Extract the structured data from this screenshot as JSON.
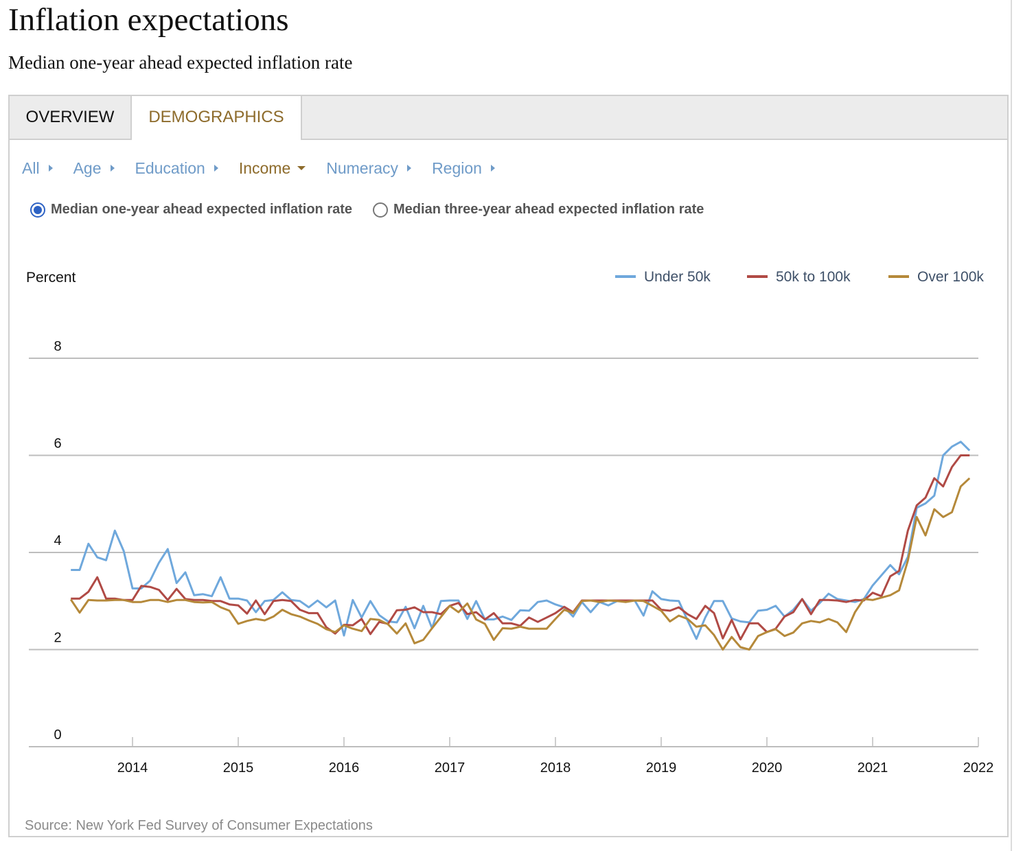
{
  "page": {
    "title": "Inflation expectations",
    "subtitle": "Median one-year ahead expected inflation rate"
  },
  "tabs": [
    {
      "label": "OVERVIEW",
      "active": false
    },
    {
      "label": "DEMOGRAPHICS",
      "active": true
    }
  ],
  "filters": [
    {
      "label": "All",
      "icon": "caret-right-icon",
      "active": false
    },
    {
      "label": "Age",
      "icon": "caret-right-icon",
      "active": false
    },
    {
      "label": "Education",
      "icon": "caret-right-icon",
      "active": false
    },
    {
      "label": "Income",
      "icon": "caret-down-icon",
      "active": true
    },
    {
      "label": "Numeracy",
      "icon": "caret-right-icon",
      "active": false
    },
    {
      "label": "Region",
      "icon": "caret-right-icon",
      "active": false
    }
  ],
  "radios": [
    {
      "label": "Median one-year ahead expected inflation rate",
      "checked": true
    },
    {
      "label": "Median three-year ahead expected inflation rate",
      "checked": false
    }
  ],
  "source": "Source: New York Fed Survey of Consumer Expectations",
  "colors": {
    "accent_gold": "#8d6b2b",
    "link_blue": "#6f9bc8",
    "radio_blue": "#2d62c4"
  },
  "chart_data": {
    "type": "line",
    "title": "",
    "ylabel": "Percent",
    "xlabel": "",
    "ylim": [
      0,
      8
    ],
    "yticks": [
      0,
      2,
      4,
      6,
      8
    ],
    "xticks": [
      "2014",
      "2015",
      "2016",
      "2017",
      "2018",
      "2019",
      "2020",
      "2021",
      "2022"
    ],
    "xrange": [
      "2013-06",
      "2022-01"
    ],
    "x_start": "2013-06",
    "x_frequency": "monthly",
    "x_end": "2021-12",
    "grid": "horizontal",
    "legend_position": "top-right",
    "series": [
      {
        "name": "Under 50k",
        "color": "#6fa8dc",
        "values": [
          3.64,
          3.64,
          4.18,
          3.9,
          3.84,
          4.45,
          4.03,
          3.26,
          3.26,
          3.42,
          3.79,
          4.07,
          3.37,
          3.59,
          3.12,
          3.14,
          3.1,
          3.49,
          3.05,
          3.05,
          3.01,
          2.77,
          3.0,
          3.02,
          3.18,
          3.02,
          3.0,
          2.87,
          3.01,
          2.87,
          3.01,
          2.29,
          3.02,
          2.66,
          3.0,
          2.71,
          2.58,
          2.56,
          2.88,
          2.44,
          2.9,
          2.44,
          3.0,
          3.01,
          3.01,
          2.63,
          3.0,
          2.62,
          2.62,
          2.68,
          2.61,
          2.81,
          2.8,
          2.98,
          3.01,
          2.93,
          2.87,
          2.68,
          2.98,
          2.77,
          2.98,
          2.91,
          3.0,
          3.01,
          3.01,
          2.7,
          3.2,
          3.04,
          3.01,
          3.0,
          2.6,
          2.22,
          2.66,
          3.0,
          3.0,
          2.64,
          2.58,
          2.56,
          2.8,
          2.82,
          2.9,
          2.68,
          2.82,
          3.04,
          2.8,
          2.96,
          3.15,
          3.04,
          3.01,
          2.98,
          3.04,
          3.32,
          3.53,
          3.74,
          3.55,
          3.91,
          4.92,
          5.01,
          5.17,
          6.0,
          6.18,
          6.28,
          6.1
        ]
      },
      {
        "name": "50k to 100k",
        "color": "#b04a45",
        "values": [
          3.05,
          3.05,
          3.19,
          3.49,
          3.05,
          3.05,
          3.02,
          3.02,
          3.31,
          3.29,
          3.23,
          3.02,
          3.25,
          3.04,
          3.02,
          3.02,
          3.0,
          3.0,
          2.93,
          2.91,
          2.74,
          3.01,
          2.73,
          3.0,
          3.02,
          3.0,
          2.82,
          2.75,
          2.75,
          2.46,
          2.33,
          2.51,
          2.5,
          2.63,
          2.32,
          2.57,
          2.53,
          2.81,
          2.82,
          2.87,
          2.77,
          2.77,
          2.73,
          2.9,
          2.96,
          2.73,
          2.77,
          2.62,
          2.75,
          2.54,
          2.54,
          2.49,
          2.66,
          2.57,
          2.66,
          2.75,
          2.88,
          2.77,
          3.01,
          3.01,
          3.01,
          3.01,
          3.01,
          3.01,
          3.01,
          3.01,
          3.01,
          2.82,
          2.8,
          2.87,
          2.73,
          2.63,
          2.9,
          2.75,
          2.23,
          2.61,
          2.21,
          2.54,
          2.54,
          2.36,
          2.43,
          2.68,
          2.77,
          3.04,
          2.73,
          3.02,
          3.02,
          3.01,
          2.98,
          3.02,
          3.01,
          3.17,
          3.1,
          3.51,
          3.62,
          4.45,
          4.97,
          5.13,
          5.53,
          5.36,
          5.76,
          6.0,
          6.0
        ]
      },
      {
        "name": "Over 100k",
        "color": "#b5893a",
        "values": [
          3.03,
          2.76,
          3.02,
          3.01,
          3.01,
          3.02,
          3.02,
          2.98,
          2.98,
          3.02,
          3.02,
          2.98,
          3.02,
          3.02,
          2.98,
          2.97,
          2.98,
          2.87,
          2.8,
          2.53,
          2.59,
          2.63,
          2.6,
          2.68,
          2.82,
          2.73,
          2.68,
          2.6,
          2.53,
          2.42,
          2.36,
          2.5,
          2.43,
          2.38,
          2.63,
          2.61,
          2.52,
          2.33,
          2.54,
          2.13,
          2.2,
          2.44,
          2.67,
          2.9,
          2.77,
          2.95,
          2.62,
          2.53,
          2.2,
          2.44,
          2.43,
          2.47,
          2.43,
          2.43,
          2.43,
          2.63,
          2.82,
          2.75,
          3.0,
          3.01,
          2.98,
          3.01,
          3.0,
          2.98,
          3.01,
          3.0,
          2.9,
          2.8,
          2.58,
          2.7,
          2.63,
          2.47,
          2.5,
          2.3,
          2.0,
          2.26,
          2.05,
          2.0,
          2.28,
          2.36,
          2.42,
          2.28,
          2.35,
          2.54,
          2.59,
          2.56,
          2.63,
          2.56,
          2.36,
          2.77,
          3.04,
          3.02,
          3.07,
          3.12,
          3.22,
          3.83,
          4.73,
          4.35,
          4.89,
          4.73,
          4.83,
          5.36,
          5.53
        ]
      }
    ]
  }
}
